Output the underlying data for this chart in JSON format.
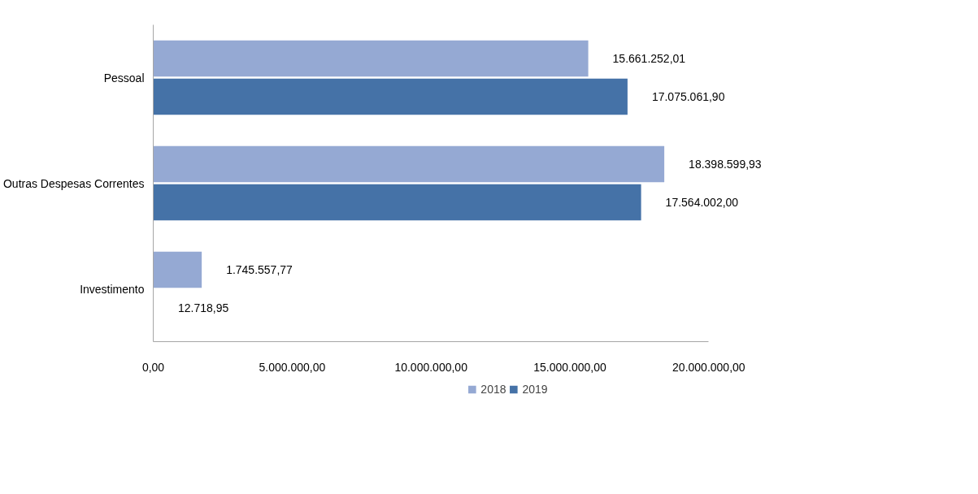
{
  "chart_data": {
    "type": "bar",
    "orientation": "horizontal",
    "categories": [
      "Pessoal",
      "Outras Despesas Correntes",
      "Investimento"
    ],
    "series": [
      {
        "name": "2018",
        "color": "#95a9d3",
        "values": [
          15661252.01,
          18398599.93,
          1745557.77
        ],
        "value_labels": [
          "15.661.252,01",
          "18.398.599,93",
          "1.745.557,77"
        ]
      },
      {
        "name": "2019",
        "color": "#4572a7",
        "values": [
          17075061.9,
          17564002.0,
          12718.95
        ],
        "value_labels": [
          "17.075.061,90",
          "17.564.002,00",
          "12.718,95"
        ]
      }
    ],
    "xlim": [
      0,
      20000000
    ],
    "xticks": [
      {
        "value": 0,
        "label": "0,00"
      },
      {
        "value": 5000000,
        "label": "5.000.000,00"
      },
      {
        "value": 10000000,
        "label": "10.000.000,00"
      },
      {
        "value": 15000000,
        "label": "15.000.000,00"
      },
      {
        "value": 20000000,
        "label": "20.000.000,00"
      }
    ],
    "grid": false,
    "legend": "bottom"
  }
}
